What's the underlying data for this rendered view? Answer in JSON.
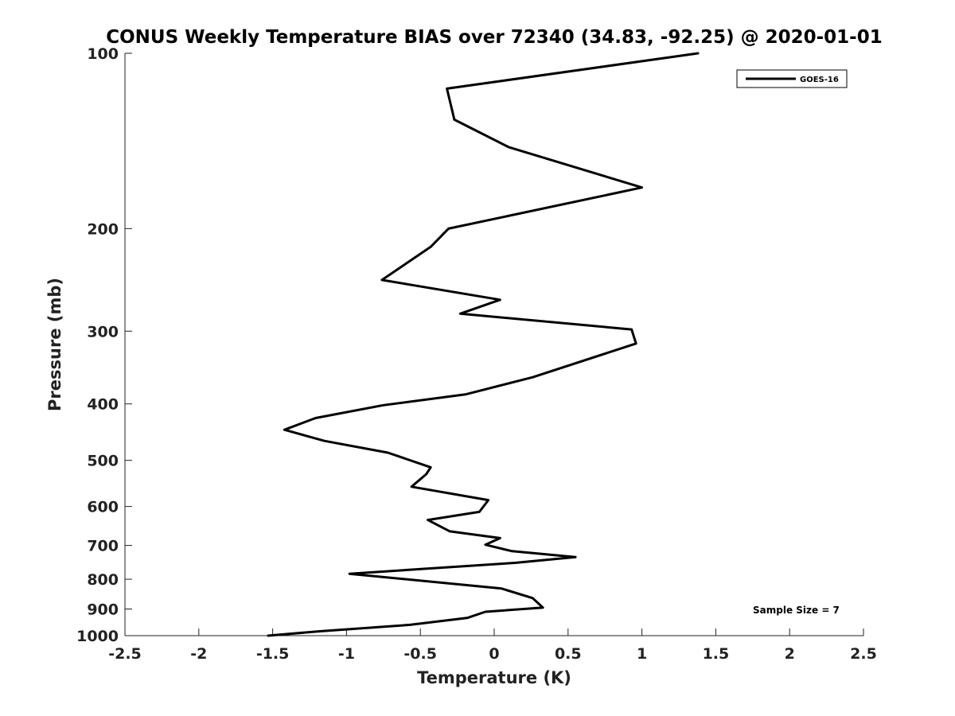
{
  "chart_data": {
    "type": "line",
    "title": "CONUS Weekly Temperature BIAS over 72340 (34.83, -92.25) @ 2020-01-01",
    "xlabel": "Temperature (K)",
    "ylabel": "Pressure (mb)",
    "xlim": [
      -2.5,
      2.5
    ],
    "ylim": [
      1000,
      100
    ],
    "y_scale": "log",
    "y_reversed": true,
    "x_ticks": [
      -2.5,
      -2,
      -1.5,
      -1,
      -0.5,
      0,
      0.5,
      1,
      1.5,
      2,
      2.5
    ],
    "x_tick_labels": [
      "-2.5",
      "-2",
      "-1.5",
      "-1",
      "-0.5",
      "0",
      "0.5",
      "1",
      "1.5",
      "2",
      "2.5"
    ],
    "y_ticks": [
      100,
      200,
      300,
      400,
      500,
      600,
      700,
      800,
      900,
      1000
    ],
    "y_tick_labels": [
      "100",
      "200",
      "300",
      "400",
      "500",
      "600",
      "700",
      "800",
      "900",
      "1000"
    ],
    "grid": false,
    "legend_position": "top-right",
    "series": [
      {
        "name": "GOES-16",
        "color": "#000000",
        "x": [
          1.38,
          -0.32,
          -0.27,
          0.1,
          1.0,
          -0.31,
          -0.43,
          -0.76,
          0.04,
          -0.23,
          0.93,
          0.96,
          0.26,
          -0.19,
          -0.75,
          -1.21,
          -1.42,
          -1.15,
          -0.72,
          -0.43,
          -0.46,
          -0.56,
          -0.04,
          -0.1,
          -0.45,
          -0.3,
          0.04,
          -0.06,
          0.12,
          0.55,
          0.14,
          -0.98,
          0.05,
          0.26,
          0.33,
          -0.06,
          -0.18,
          -0.57,
          -1.18,
          -1.53
        ],
        "y": [
          100,
          115,
          130,
          145,
          170,
          200,
          215,
          245,
          265,
          280,
          298,
          315,
          360,
          385,
          402,
          423,
          443,
          463,
          485,
          514,
          528,
          555,
          585,
          613,
          633,
          662,
          680,
          698,
          716,
          733,
          750,
          783,
          830,
          862,
          895,
          910,
          932,
          958,
          983,
          1000
        ]
      }
    ],
    "annotations": [
      "Sample Size = 7"
    ]
  }
}
